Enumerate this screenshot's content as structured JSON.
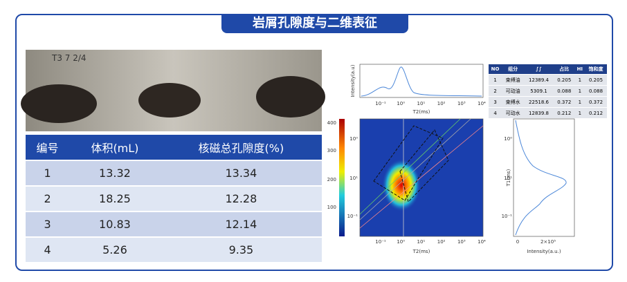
{
  "title": "岩屑孔隙度与二维表征",
  "table": {
    "header": [
      "编号",
      "体积(mL)",
      "核磁总孔隙度(%)"
    ],
    "rows": [
      [
        "1",
        "13.32",
        "13.34"
      ],
      [
        "2",
        "18.25",
        "12.28"
      ],
      [
        "3",
        "10.83",
        "12.14"
      ],
      [
        "4",
        "5.26",
        "9.35"
      ]
    ]
  },
  "nmr_table": {
    "header": [
      "NO",
      "组分",
      "∫∫",
      "占比",
      "HI",
      "饱和度"
    ],
    "rows": [
      [
        "1",
        "束缚油",
        "12389.4",
        "0.205",
        "1",
        "0.205"
      ],
      [
        "2",
        "可动油",
        "5309.1",
        "0.088",
        "1",
        "0.088"
      ],
      [
        "3",
        "束缚水",
        "22518.6",
        "0.372",
        "1",
        "0.372"
      ],
      [
        "4",
        "可动水",
        "12839.8",
        "0.212",
        "1",
        "0.212"
      ]
    ]
  },
  "t2_chart": {
    "ylabel": "Intensity(a.u)",
    "xlabel": "T2(ms)",
    "xticks": [
      "10⁻¹",
      "10⁰",
      "10¹",
      "10²",
      "10³",
      "10⁴"
    ]
  },
  "map": {
    "xlabel": "T2(ms)",
    "xticks": [
      "10⁻¹",
      "10⁰",
      "10¹",
      "10²",
      "10³",
      "10⁴"
    ],
    "yticks": [
      "10⁰",
      "10¹",
      "10⁻¹"
    ],
    "colorbar_ticks": [
      "400",
      "300",
      "200",
      "100"
    ]
  },
  "t1_chart": {
    "ylabel": "T1(ms)",
    "xlabel": "Intensity(a.u.)",
    "xticks": [
      "0",
      "2×10⁵"
    ],
    "yticks": [
      "10⁰",
      "10¹",
      "10⁻¹"
    ]
  }
}
